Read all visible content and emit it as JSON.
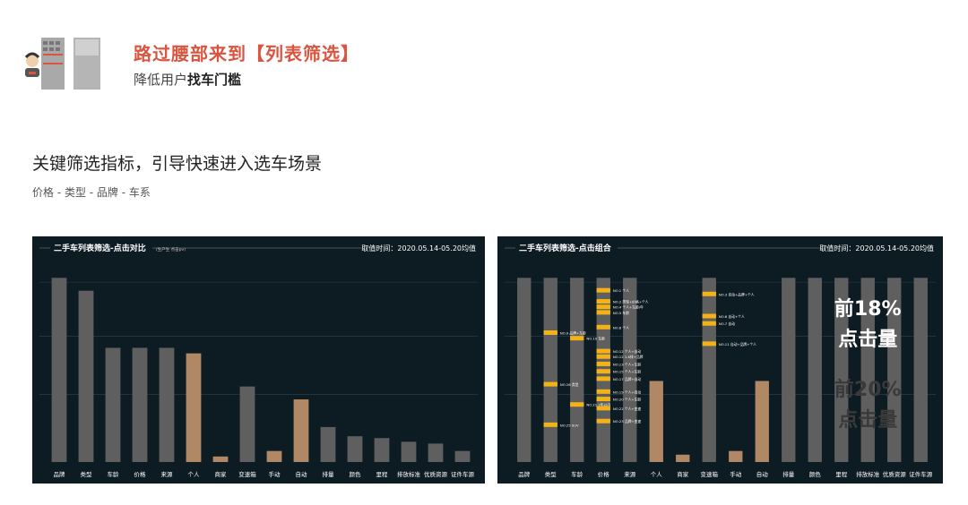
{
  "header": {
    "title": "路过腰部来到【列表筛选】",
    "subtitle_prefix": "降低用户",
    "subtitle_bold": "找车门槛"
  },
  "section": {
    "title": "关键筛选指标，引导快速进入选车场景",
    "subtitle": "价格 - 类型 - 品牌 - 车系"
  },
  "colors": {
    "panel_bg": "#0d1b22",
    "bar_gray": "#5f5f5f",
    "bar_tan": "#b08866",
    "highlight_yellow": "#f3b316",
    "title_red": "#d9553f"
  },
  "chart_data": [
    {
      "type": "bar",
      "title": "二手车列表筛选-点击对比",
      "title_note": "(生产生          点击pv)",
      "date_text": "取值时间：2020.05.14-05.20均值",
      "categories": [
        "品牌",
        "类型",
        "车龄",
        "价格",
        "来源",
        "个人",
        "商家",
        "变速箱",
        "手动",
        "自动",
        "排量",
        "颜色",
        "里程",
        "排放标准",
        "优质资源",
        "证件车源"
      ],
      "values": [
        100,
        93,
        62,
        62,
        62,
        59,
        3,
        41,
        6,
        34,
        19,
        14,
        13,
        11,
        10,
        6
      ],
      "highlight": [
        false,
        false,
        false,
        false,
        false,
        true,
        true,
        false,
        true,
        true,
        false,
        false,
        false,
        false,
        false,
        false
      ],
      "ylim": [
        0,
        105
      ],
      "grid": true,
      "legend": false
    },
    {
      "type": "bar",
      "title": "二手车列表筛选-点击组合",
      "date_text": "取值时间：2020.05.14-05.20均值",
      "categories": [
        "品牌",
        "类型",
        "车龄",
        "价格",
        "来源",
        "个人",
        "商家",
        "变速箱",
        "手动",
        "自动",
        "排量",
        "颜色",
        "里程",
        "排放标准",
        "优质资源",
        "证件车源"
      ],
      "values": [
        100,
        100,
        100,
        100,
        100,
        44,
        4,
        100,
        6,
        44,
        100,
        100,
        100,
        100,
        100,
        100
      ],
      "highlight": [
        false,
        false,
        false,
        false,
        false,
        true,
        true,
        false,
        true,
        true,
        false,
        false,
        false,
        false,
        false,
        false
      ],
      "ylim": [
        0,
        105
      ],
      "grid": true,
      "legend": false,
      "annotations": [
        {
          "text": "NO.1 个人",
          "col": 3,
          "level": 93
        },
        {
          "text": "NO.2 类型+价格+个人",
          "col": 3,
          "level": 87
        },
        {
          "text": "NO.3 自动+品牌+个人",
          "col": 7,
          "level": 91
        },
        {
          "text": "NO.4 个人+车龄/年",
          "col": 3,
          "level": 84
        },
        {
          "text": "NO.5 车龄",
          "col": 3,
          "level": 81
        },
        {
          "text": "NO.6 自动+个人",
          "col": 7,
          "level": 79
        },
        {
          "text": "NO.7 自动",
          "col": 7,
          "level": 75
        },
        {
          "text": "NO.8 个人",
          "col": 3,
          "level": 73
        },
        {
          "text": "NO.9 品牌+车龄",
          "col": 1,
          "level": 70
        },
        {
          "text": "NO.10 车龄",
          "col": 2,
          "level": 67
        },
        {
          "text": "NO.11 自动+品牌+个人",
          "col": 7,
          "level": 64
        },
        {
          "text": "NO.12 个人+自动",
          "col": 3,
          "level": 60
        },
        {
          "text": "NO.12 1.6排+品牌",
          "col": 3,
          "level": 57
        },
        {
          "text": "NO.13 个人+车龄",
          "col": 3,
          "level": 53
        },
        {
          "text": "NO.15 个人+车龄",
          "col": 3,
          "level": 49
        },
        {
          "text": "NO.17 品牌+自动",
          "col": 3,
          "level": 45
        },
        {
          "text": "NO.18 类型",
          "col": 1,
          "level": 42
        },
        {
          "text": "NO.19 个人+自动",
          "col": 3,
          "level": 38
        },
        {
          "text": "NO.20 个人+车龄",
          "col": 3,
          "level": 34
        },
        {
          "text": "NO.21 7年以内",
          "col": 2,
          "level": 31
        },
        {
          "text": "NO.22 个人+变速",
          "col": 3,
          "level": 29
        },
        {
          "text": "NO.23 品牌+变速",
          "col": 3,
          "level": 22
        },
        {
          "text": "NO.25 SUV",
          "col": 1,
          "level": 20
        }
      ],
      "overlay": {
        "line1": "前18%",
        "line2": "点击量",
        "line3": "前20%",
        "line4": "点击量"
      }
    }
  ]
}
